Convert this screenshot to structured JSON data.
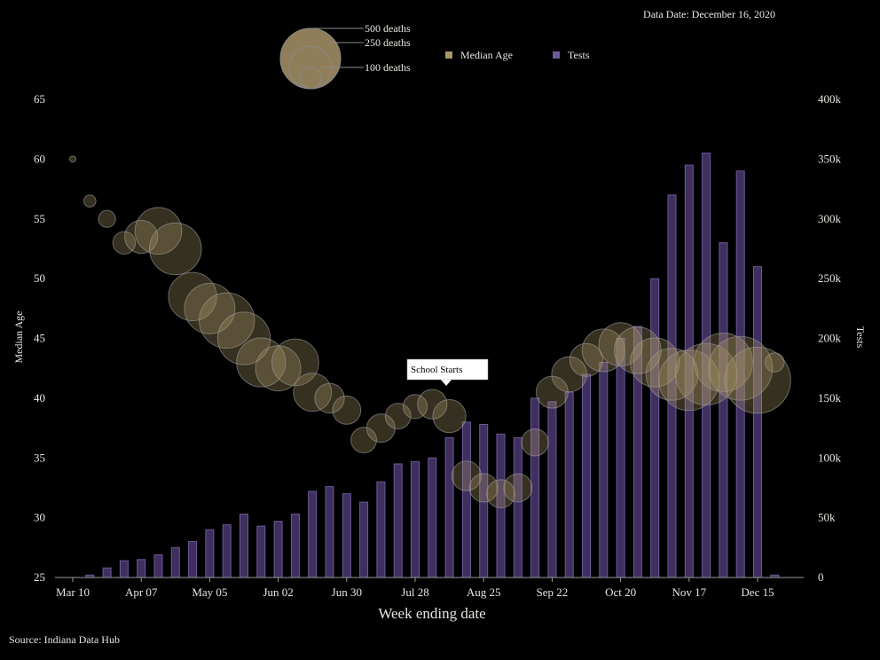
{
  "chart_data": {
    "type": "bar+bubble",
    "title": "",
    "data_date": "Data Date: December 16, 2020",
    "source": "Source: Indiana Data Hub",
    "xlabel": "Week ending date",
    "ylabel_left": "Median Age",
    "ylabel_right": "Tests",
    "ylim_left": [
      25,
      65
    ],
    "ylim_right": [
      0,
      400000
    ],
    "yticks_left": [
      "25",
      "30",
      "35",
      "40",
      "45",
      "50",
      "55",
      "60",
      "65"
    ],
    "yticks_right": [
      "0",
      "50k",
      "100k",
      "150k",
      "200k",
      "250k",
      "300k",
      "350k",
      "400k"
    ],
    "xtick_labels": [
      "Mar 10",
      "Apr 07",
      "May 05",
      "Jun 02",
      "Jun 30",
      "Jul 28",
      "Aug 25",
      "Sep 22",
      "Oct 20",
      "Nov 17",
      "Dec 15"
    ],
    "xtick_indices": [
      0,
      4,
      8,
      12,
      16,
      20,
      24,
      28,
      32,
      36,
      40
    ],
    "legend": [
      {
        "label": "Median Age",
        "color": "#a89468"
      },
      {
        "label": "Tests",
        "color": "#6e5a9a"
      }
    ],
    "size_legend": [
      "500 deaths",
      "250 deaths",
      "100 deaths"
    ],
    "size_legend_values": [
      500,
      250,
      100
    ],
    "annotation": {
      "text": "School Starts",
      "week_index": 21
    },
    "weeks": [
      "Mar 10",
      "Mar 17",
      "Mar 24",
      "Mar 31",
      "Apr 07",
      "Apr 14",
      "Apr 21",
      "Apr 28",
      "May 05",
      "May 12",
      "May 19",
      "May 26",
      "Jun 02",
      "Jun 09",
      "Jun 16",
      "Jun 23",
      "Jun 30",
      "Jul 07",
      "Jul 14",
      "Jul 21",
      "Jul 28",
      "Aug 04",
      "Aug 11",
      "Aug 18",
      "Aug 25",
      "Sep 01",
      "Sep 08",
      "Sep 15",
      "Sep 22",
      "Sep 29",
      "Oct 06",
      "Oct 13",
      "Oct 20",
      "Oct 27",
      "Nov 03",
      "Nov 10",
      "Nov 17",
      "Nov 24",
      "Dec 01",
      "Dec 08",
      "Dec 15",
      "Dec 22"
    ],
    "series": [
      {
        "name": "Tests",
        "values": [
          0,
          2000,
          8000,
          14000,
          15000,
          19000,
          25000,
          30000,
          40000,
          44000,
          53000,
          43000,
          47000,
          53000,
          72000,
          76000,
          70000,
          63000,
          80000,
          95000,
          97000,
          100000,
          117000,
          130000,
          128000,
          120000,
          117000,
          150000,
          147000,
          155000,
          170000,
          180000,
          200000,
          210000,
          250000,
          320000,
          345000,
          355000,
          280000,
          340000,
          260000,
          2000
        ]
      },
      {
        "name": "Median Age",
        "values": [
          60,
          56.5,
          55,
          53,
          53.5,
          54,
          52.5,
          48.5,
          47.5,
          46.5,
          45,
          43,
          42.5,
          43,
          40.5,
          40,
          39,
          36.5,
          37.5,
          38.5,
          39.3,
          39.5,
          38.5,
          33.5,
          32.5,
          32,
          32.5,
          36.3,
          40.5,
          42,
          43.2,
          44,
          44.5,
          44,
          43,
          42,
          41.5,
          42,
          43,
          42.5,
          41.5,
          43
        ]
      },
      {
        "name": "Deaths",
        "values": [
          5,
          20,
          40,
          70,
          150,
          300,
          370,
          320,
          350,
          420,
          380,
          330,
          280,
          300,
          200,
          120,
          110,
          90,
          110,
          90,
          80,
          120,
          150,
          120,
          110,
          110,
          110,
          100,
          140,
          170,
          150,
          250,
          260,
          300,
          330,
          370,
          500,
          520,
          470,
          560,
          600,
          50
        ]
      }
    ]
  }
}
